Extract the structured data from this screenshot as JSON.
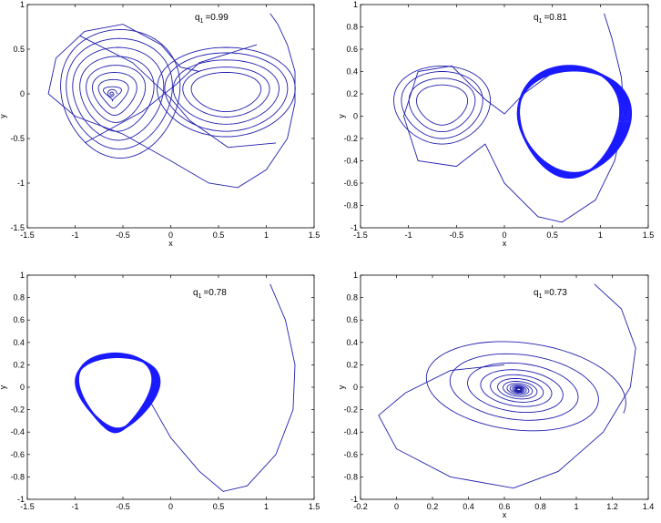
{
  "chart_data": [
    {
      "type": "line",
      "annotation": {
        "symbol": "q",
        "subscript": "1",
        "value": "=0.99"
      },
      "xlabel": "x",
      "ylabel": "y",
      "xlim": [
        -1.5,
        1.5
      ],
      "ylim": [
        -1.5,
        1
      ],
      "xticks": [
        "-1.5",
        "-1",
        "-0.5",
        "0",
        "0.5",
        "1",
        "1.5"
      ],
      "yticks": [
        "-1.5",
        "-1",
        "-0.5",
        "0",
        "0.5",
        "1"
      ],
      "attractor": "double-scroll",
      "series": [
        {
          "values": [
            {
              "x": 1.04,
              "y": 0.9
            },
            {
              "x": 1.3,
              "y": 0.1
            },
            {
              "x": 0.6,
              "y": -1.05
            },
            {
              "x": -1.3,
              "y": 0.0
            },
            {
              "x": -0.62,
              "y": 0.0
            },
            {
              "x": 0.55,
              "y": 0.05
            }
          ]
        }
      ]
    },
    {
      "type": "line",
      "annotation": {
        "symbol": "q",
        "subscript": "1",
        "value": "=0.81"
      },
      "xlabel": "x",
      "ylabel": "y",
      "xlim": [
        -1.5,
        1.5
      ],
      "ylim": [
        -1,
        1
      ],
      "xticks": [
        "-1.5",
        "-1",
        "-0.5",
        "0",
        "0.5",
        "1",
        "1.5"
      ],
      "yticks": [
        "-1",
        "-0.8",
        "-0.6",
        "-0.4",
        "-0.2",
        "0",
        "0.2",
        "0.4",
        "0.6",
        "0.8",
        "1"
      ],
      "attractor": "double-scroll to single limit cycle",
      "series": [
        {
          "values": [
            {
              "x": 1.04,
              "y": 0.92
            },
            {
              "x": 1.25,
              "y": 0.0
            },
            {
              "x": 0.6,
              "y": -0.95
            },
            {
              "x": -1.0,
              "y": 0.3
            },
            {
              "x": 0.02,
              "y": 0.03
            },
            {
              "x": 0.8,
              "y": 0.45
            }
          ]
        }
      ]
    },
    {
      "type": "line",
      "annotation": {
        "symbol": "q",
        "subscript": "1",
        "value": "=0.78"
      },
      "xlabel": "",
      "ylabel": "y",
      "xlim": [
        -1.5,
        1.5
      ],
      "ylim": [
        -1,
        1
      ],
      "xticks": [
        "-1.5",
        "-1",
        "-0.5",
        "0",
        "0.5",
        "1",
        "1.5"
      ],
      "yticks": [
        "-1",
        "-0.8",
        "-0.6",
        "-0.4",
        "-0.2",
        "0",
        "0.2",
        "0.4",
        "0.6",
        "0.8",
        "1"
      ],
      "attractor": "limit cycle",
      "series": [
        {
          "values": [
            {
              "x": 1.04,
              "y": 0.92
            },
            {
              "x": 1.31,
              "y": 0.1
            },
            {
              "x": 0.6,
              "y": -0.93
            },
            {
              "x": -0.22,
              "y": -0.1
            },
            {
              "x": -0.6,
              "y": 0.3
            },
            {
              "x": -0.9,
              "y": -0.42
            }
          ]
        }
      ]
    },
    {
      "type": "line",
      "annotation": {
        "symbol": "q",
        "subscript": "1",
        "value": "=0.73"
      },
      "xlabel": "x",
      "ylabel": "y",
      "xlim": [
        -0.2,
        1.4
      ],
      "ylim": [
        -1,
        1
      ],
      "xticks": [
        "-0.2",
        "0",
        "0.2",
        "0.4",
        "0.6",
        "0.8",
        "1",
        "1.2",
        "1.4"
      ],
      "yticks": [
        "-1",
        "-0.8",
        "-0.6",
        "-0.4",
        "-0.2",
        "0",
        "0.2",
        "0.4",
        "0.6",
        "0.8",
        "1"
      ],
      "attractor": "stable focus",
      "series": [
        {
          "values": [
            {
              "x": 1.1,
              "y": 0.92
            },
            {
              "x": 1.33,
              "y": 0.3
            },
            {
              "x": 0.65,
              "y": -0.9
            },
            {
              "x": -0.1,
              "y": -0.25
            },
            {
              "x": 0.68,
              "y": -0.02
            }
          ]
        }
      ]
    }
  ]
}
